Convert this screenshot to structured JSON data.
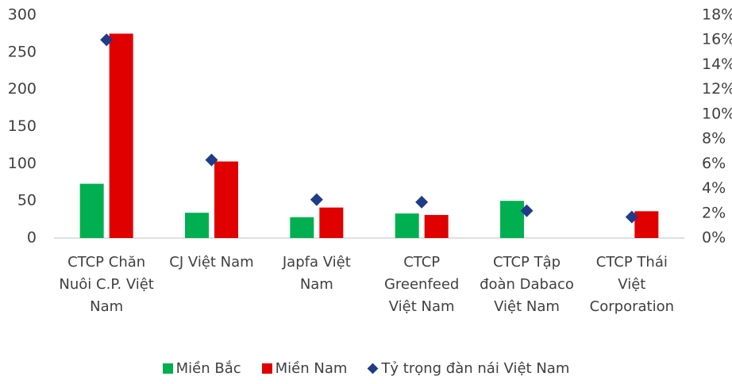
{
  "chart_data": {
    "type": "bar",
    "categories": [
      "CTCP Chăn Nuôi C.P. Việt Nam",
      "CJ Việt Nam",
      "Japfa Việt Nam",
      "CTCP Greenfeed Việt Nam",
      "CTCP Tập đoàn Dabaco Việt Nam",
      "CTCP Thái Việt Corporation"
    ],
    "series": [
      {
        "name": "Miền Bắc",
        "color": "#00b050",
        "values": [
          73,
          34,
          28,
          33,
          50,
          null
        ]
      },
      {
        "name": "Miền Nam",
        "color": "#e00000",
        "values": [
          275,
          103,
          41,
          31,
          null,
          36
        ]
      },
      {
        "name": "Tỷ trọng đàn nái Việt Nam",
        "color": "#1f3c88",
        "type": "scatter",
        "marker": "diamond",
        "axis": "y2",
        "values": [
          16,
          6.3,
          3.1,
          2.9,
          2.2,
          1.7
        ]
      }
    ],
    "ylim": [
      0,
      300
    ],
    "yticks": [
      0,
      50,
      100,
      150,
      200,
      250,
      300
    ],
    "y2lim": [
      0,
      18
    ],
    "y2ticks": [
      {
        "value": 0,
        "label": "0%"
      },
      {
        "value": 2,
        "label": "2%"
      },
      {
        "value": 4,
        "label": "4%"
      },
      {
        "value": 6,
        "label": "6%"
      },
      {
        "value": 8,
        "label": "8%"
      },
      {
        "value": 10,
        "label": "10%"
      },
      {
        "value": 12,
        "label": "12%"
      },
      {
        "value": 14,
        "label": "14%"
      },
      {
        "value": 16,
        "label": "16%"
      },
      {
        "value": 18,
        "label": "18%"
      }
    ],
    "grid": false,
    "legend": "bottom"
  }
}
